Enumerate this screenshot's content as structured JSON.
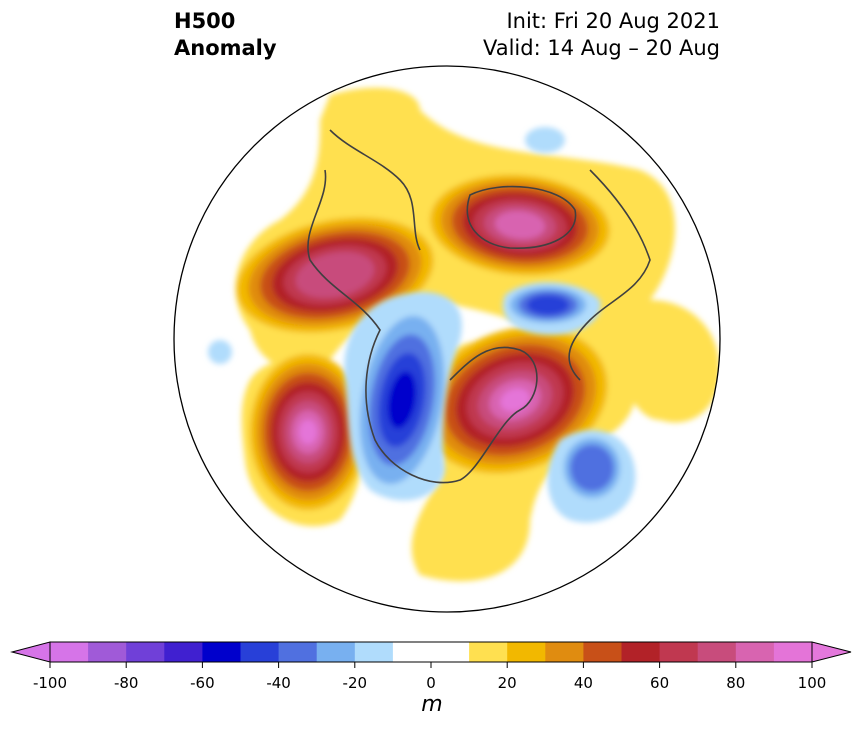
{
  "title": {
    "line1": "H500",
    "line2": "Anomaly",
    "init": "Init: Fri 20 Aug 2021",
    "valid": "Valid: 14 Aug – 20 Aug"
  },
  "colorbar": {
    "unit": "m",
    "min": -100,
    "max": 100,
    "step": 10,
    "tick_labels": [
      "-100",
      "-80",
      "-60",
      "-40",
      "-20",
      "0",
      "20",
      "40",
      "60",
      "80",
      "100"
    ],
    "colors": [
      "#d674e8",
      "#a05ad8",
      "#7040d8",
      "#4020d0",
      "#0000cc",
      "#2840d8",
      "#5070e0",
      "#78b0f0",
      "#b0dcfc",
      "#ffffff",
      "#ffffff",
      "#ffe050",
      "#f2b800",
      "#e08c10",
      "#c85018",
      "#b22228",
      "#c03850",
      "#c84c7c",
      "#d864b0",
      "#e474d8"
    ],
    "under_color": "#d674e8",
    "over_color": "#e478dc"
  },
  "anomalies": [
    {
      "name": "central-pacific-ridge",
      "sign": "positive",
      "peak": 70
    },
    {
      "name": "arctic-siberia-ridge",
      "sign": "positive",
      "peak": 90
    },
    {
      "name": "eastern-canada-ridge",
      "sign": "positive",
      "peak": 100
    },
    {
      "name": "northeast-pacific-ridge",
      "sign": "positive",
      "peak": 100
    },
    {
      "name": "northwest-north-america-trough",
      "sign": "negative",
      "peak": -60
    },
    {
      "name": "barents-kara-trough",
      "sign": "negative",
      "peak": -50
    },
    {
      "name": "north-atlantic-trough",
      "sign": "negative",
      "peak": -40
    },
    {
      "name": "arctic-small-trough",
      "sign": "negative",
      "peak": -20
    }
  ]
}
